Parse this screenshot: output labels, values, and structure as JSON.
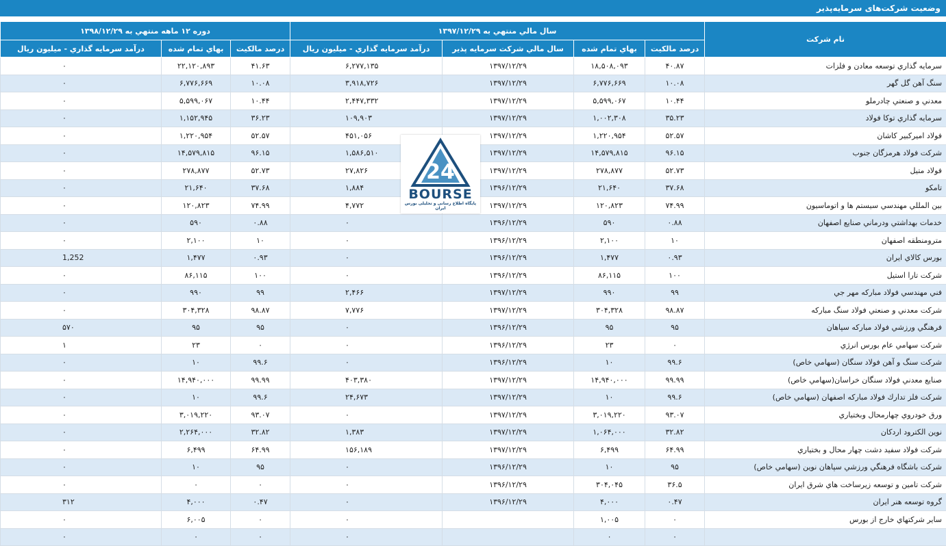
{
  "title": "وضعیت شرکت‌های سرمایه‌پذیر",
  "columns": {
    "name": "نام شرکت",
    "group1": "سال مالي منتهي به ۱۳۹۷/۱۲/۲۹",
    "group2": "دوره ۱۲ ماهه منتهي به ۱۳۹۸/۱۲/۲۹",
    "ownership": "درصد مالكيت",
    "cost": "بهاي تمام شده",
    "fiscal_year": "سال مالي شركت سرمايه پذير",
    "income": "درآمد سرمايه گذاري - ميليون ريال"
  },
  "logo": {
    "text": "BOURSE",
    "number": "24",
    "tagline": "پایگاه اطلاع رسانی و تحلیلی بورس ایران"
  },
  "rows": [
    {
      "name": "سرمايه گذاري توسعه معادن و فلزات",
      "o1": "۴۰.۸۷",
      "c1": "۱۸,۵۰۸,۰۹۳",
      "fy": "۱۳۹۷/۱۲/۲۹",
      "i1": "۶,۲۷۷,۱۳۵",
      "o2": "۴۱.۶۳",
      "c2": "۲۲,۱۲۰,۸۹۳",
      "i2": "۰"
    },
    {
      "name": "سنگ آهن گل گهر",
      "o1": "۱۰.۰۸",
      "c1": "۶,۷۷۶,۶۶۹",
      "fy": "۱۳۹۷/۱۲/۲۹",
      "i1": "۳,۹۱۸,۷۲۶",
      "o2": "۱۰.۰۸",
      "c2": "۶,۷۷۶,۶۶۹",
      "i2": "۰"
    },
    {
      "name": "معدني و صنعتي چادرملو",
      "o1": "۱۰.۴۴",
      "c1": "۵,۵۹۹,۰۶۷",
      "fy": "۱۳۹۷/۱۲/۲۹",
      "i1": "۲,۴۴۷,۳۳۲",
      "o2": "۱۰.۴۴",
      "c2": "۵,۵۹۹,۰۶۷",
      "i2": "۰"
    },
    {
      "name": "سرمايه گذاري توكا فولاد",
      "o1": "۳۵.۲۳",
      "c1": "۱,۰۰۲,۳۰۸",
      "fy": "۱۳۹۷/۱۲/۲۹",
      "i1": "۱۰۹,۹۰۳",
      "o2": "۳۶.۲۳",
      "c2": "۱,۱۵۲,۹۴۵",
      "i2": "۰"
    },
    {
      "name": "فولاد اميركبير كاشان",
      "o1": "۵۲.۵۷",
      "c1": "۱,۲۲۰,۹۵۴",
      "fy": "۱۳۹۷/۱۲/۲۹",
      "i1": "۴۵۱,۰۵۶",
      "o2": "۵۲.۵۷",
      "c2": "۱,۲۲۰,۹۵۴",
      "i2": "۰"
    },
    {
      "name": "شركت فولاد هرمزگان جنوب",
      "o1": "۹۶.۱۵",
      "c1": "۱۴,۵۷۹,۸۱۵",
      "fy": "۱۳۹۷/۱۲/۲۹",
      "i1": "۱,۵۸۶,۵۱۰",
      "o2": "۹۶.۱۵",
      "c2": "۱۴,۵۷۹,۸۱۵",
      "i2": "۰"
    },
    {
      "name": "فولاد متيل",
      "o1": "۵۲.۷۳",
      "c1": "۲۷۸,۸۷۷",
      "fy": "۱۳۹۷/۱۲/۲۹",
      "i1": "۲۷,۸۲۶",
      "o2": "۵۲.۷۳",
      "c2": "۲۷۸,۸۷۷",
      "i2": "۰"
    },
    {
      "name": "تامكو",
      "o1": "۳۷.۶۸",
      "c1": "۲۱,۶۴۰",
      "fy": "۱۳۹۶/۱۲/۲۹",
      "i1": "۱,۸۸۴",
      "o2": "۳۷.۶۸",
      "c2": "۲۱,۶۴۰",
      "i2": "۰"
    },
    {
      "name": "بين المللي مهندسي سيستم ها و اتوماسيون",
      "o1": "۷۴.۹۹",
      "c1": "۱۲۰,۸۲۳",
      "fy": "۱۳۹۷/۱۲/۲۹",
      "i1": "۴,۷۷۲",
      "o2": "۷۴.۹۹",
      "c2": "۱۲۰,۸۲۳",
      "i2": "۰"
    },
    {
      "name": "خدمات بهداشتي ودرماني صنايع اصفهان",
      "o1": "۰.۸۸",
      "c1": "۵۹۰",
      "fy": "۱۳۹۶/۱۲/۲۹",
      "i1": "۰",
      "o2": "۰.۸۸",
      "c2": "۵۹۰",
      "i2": "۰"
    },
    {
      "name": "مترومنطقه اصفهان",
      "o1": "۱۰",
      "c1": "۲,۱۰۰",
      "fy": "۱۳۹۶/۱۲/۲۹",
      "i1": "۰",
      "o2": "۱۰",
      "c2": "۲,۱۰۰",
      "i2": "۰"
    },
    {
      "name": "بورس كالاي ايران",
      "o1": "۰.۹۳",
      "c1": "۱,۴۷۷",
      "fy": "۱۳۹۶/۱۲/۲۹",
      "i1": "۰",
      "o2": "۰.۹۳",
      "c2": "۱,۴۷۷",
      "i2": "1,252"
    },
    {
      "name": "شركت تارا استيل",
      "o1": "۱۰۰",
      "c1": "۸۶,۱۱۵",
      "fy": "۱۳۹۶/۱۲/۲۹",
      "i1": "۰",
      "o2": "۱۰۰",
      "c2": "۸۶,۱۱۵",
      "i2": "۰"
    },
    {
      "name": "فني مهندسي فولاد مباركه مهر جي",
      "o1": "۹۹",
      "c1": "۹۹۰",
      "fy": "۱۳۹۷/۱۲/۲۹",
      "i1": "۲,۴۶۶",
      "o2": "۹۹",
      "c2": "۹۹۰",
      "i2": "۰"
    },
    {
      "name": "شركت معدني و صنعتي فولاد سنگ مباركه",
      "o1": "۹۸.۸۷",
      "c1": "۳۰۴,۳۲۸",
      "fy": "۱۳۹۷/۱۲/۲۹",
      "i1": "۷,۷۷۶",
      "o2": "۹۸.۸۷",
      "c2": "۳۰۴,۳۲۸",
      "i2": "۰"
    },
    {
      "name": "فرهنگي ورزشي فولاد مباركه سپاهان",
      "o1": "۹۵",
      "c1": "۹۵",
      "fy": "۱۳۹۶/۱۲/۲۹",
      "i1": "۰",
      "o2": "۹۵",
      "c2": "۹۵",
      "i2": "۵۷۰"
    },
    {
      "name": "شركت سهامي عام بورس انرژي",
      "o1": "۰",
      "c1": "۲۳",
      "fy": "۱۳۹۶/۱۲/۲۹",
      "i1": "۰",
      "o2": "۰",
      "c2": "۲۳",
      "i2": "۱"
    },
    {
      "name": "شركت سنگ و آهن فولاد سنگان (سهامي خاص)",
      "o1": "۹۹.۶",
      "c1": "۱۰",
      "fy": "۱۳۹۶/۱۲/۲۹",
      "i1": "۰",
      "o2": "۹۹.۶",
      "c2": "۱۰",
      "i2": "۰"
    },
    {
      "name": "صنايع معدني فولاد سنگان خراسان(سهامي خاص)",
      "o1": "۹۹.۹۹",
      "c1": "۱۴,۹۴۰,۰۰۰",
      "fy": "۱۳۹۷/۱۲/۲۹",
      "i1": "۴۰۳,۳۸۰",
      "o2": "۹۹.۹۹",
      "c2": "۱۴,۹۴۰,۰۰۰",
      "i2": "۰"
    },
    {
      "name": "شركت فلز تدارك فولاد مباركه اصفهان (سهامي خاص)",
      "o1": "۹۹.۶",
      "c1": "۱۰",
      "fy": "۱۳۹۷/۱۲/۲۹",
      "i1": "۲۴,۶۷۳",
      "o2": "۹۹.۶",
      "c2": "۱۰",
      "i2": "۰"
    },
    {
      "name": "ورق خودروي چهارمحال وبختياري",
      "o1": "۹۳.۰۷",
      "c1": "۳,۰۱۹,۲۲۰",
      "fy": "۱۳۹۷/۱۲/۲۹",
      "i1": "۰",
      "o2": "۹۳.۰۷",
      "c2": "۳,۰۱۹,۲۲۰",
      "i2": "۰"
    },
    {
      "name": "نوين الكترود اردكان",
      "o1": "۳۲.۸۲",
      "c1": "۱,۰۶۴,۰۰۰",
      "fy": "۱۳۹۷/۱۲/۲۹",
      "i1": "۱,۳۸۳",
      "o2": "۳۲.۸۲",
      "c2": "۲,۲۶۴,۰۰۰",
      "i2": "۰"
    },
    {
      "name": "شركت فولاد سفيد دشت چهار محال و بختياري",
      "o1": "۶۴.۹۹",
      "c1": "۶,۴۹۹",
      "fy": "۱۳۹۷/۱۲/۲۹",
      "i1": "۱۵۶,۱۸۹",
      "o2": "۶۴.۹۹",
      "c2": "۶,۴۹۹",
      "i2": "۰"
    },
    {
      "name": "شركت باشگاه فرهنگي ورزشي سپاهان نوين (سهامي خاص)",
      "o1": "۹۵",
      "c1": "۱۰",
      "fy": "۱۳۹۶/۱۲/۲۹",
      "i1": "۰",
      "o2": "۹۵",
      "c2": "۱۰",
      "i2": "۰"
    },
    {
      "name": "شركت تامين و توسعه زيرساخت هاي شرق ايران",
      "o1": "۳۶.۵",
      "c1": "۳۰۴,۰۴۵",
      "fy": "۱۳۹۶/۱۲/۲۹",
      "i1": "۰",
      "o2": "۰",
      "c2": "۰",
      "i2": "۰"
    },
    {
      "name": "گروه توسعه هنر ايران",
      "o1": "۰.۴۷",
      "c1": "۴,۰۰۰",
      "fy": "۱۳۹۶/۱۲/۲۹",
      "i1": "۰",
      "o2": "۰.۴۷",
      "c2": "۴,۰۰۰",
      "i2": "۳۱۲"
    },
    {
      "name": "ساير شركتهاي خارج از بورس",
      "o1": "۰",
      "c1": "۱,۰۰۵",
      "fy": "",
      "i1": "۰",
      "o2": "۰",
      "c2": "۶,۰۰۵",
      "i2": "۰"
    },
    {
      "name": "",
      "o1": "۰",
      "c1": "۰",
      "fy": "",
      "i1": "۰",
      "o2": "۰",
      "c2": "۰",
      "i2": "۰"
    }
  ]
}
